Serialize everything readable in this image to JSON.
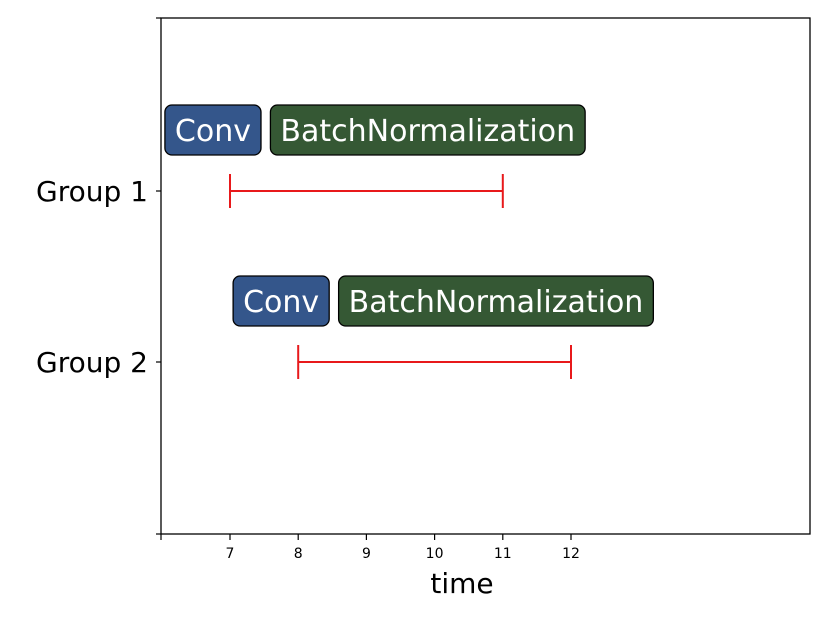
{
  "chart_data": {
    "type": "interval",
    "xlabel": "time",
    "xticks": [
      7,
      8,
      9,
      10,
      11,
      12
    ],
    "xlim": [
      6,
      15.6
    ],
    "groups": [
      "Group 1",
      "Group 2"
    ],
    "intervals": [
      {
        "group": "Group 1",
        "start": 7,
        "end": 11,
        "labels": [
          {
            "text": "Conv",
            "at": 6.75,
            "color": "#34568b"
          },
          {
            "text": "BatchNormalization",
            "at": 9.9,
            "color": "#355834"
          }
        ]
      },
      {
        "group": "Group 2",
        "start": 8,
        "end": 12,
        "labels": [
          {
            "text": "Conv",
            "at": 7.75,
            "color": "#34568b"
          },
          {
            "text": "BatchNormalization",
            "at": 10.9,
            "color": "#355834"
          }
        ]
      }
    ],
    "interval_color": "#e8191b"
  }
}
